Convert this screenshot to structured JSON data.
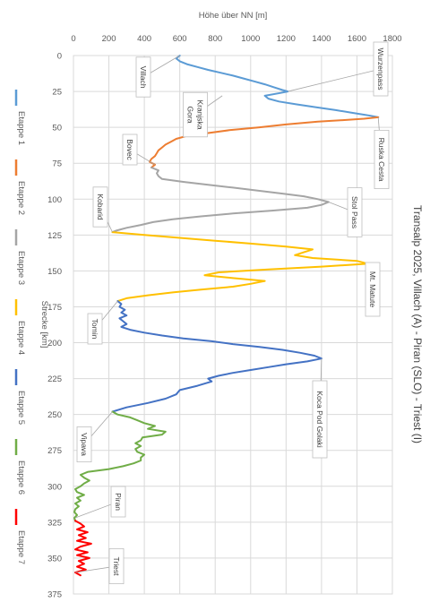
{
  "chart_data": {
    "type": "line",
    "title": "Transalp 2025, Villach (A) - Piran (SLO) - Triest (I)",
    "xlabel": "Strecke [km]",
    "ylabel": "Höhe über NN [m]",
    "xlim": [
      0,
      375
    ],
    "ylim": [
      0,
      1800
    ],
    "x_ticks": [
      0,
      25,
      50,
      75,
      100,
      125,
      150,
      175,
      200,
      225,
      250,
      275,
      300,
      325,
      350,
      375
    ],
    "y_ticks": [
      0,
      200,
      400,
      600,
      800,
      1000,
      1200,
      1400,
      1600,
      1800
    ],
    "grid": true,
    "orientation": "rotated 90 degrees clockwise",
    "legend_position": "left",
    "series": [
      {
        "name": "Etappe 1",
        "color": "#5B9BD5",
        "x": [
          0,
          2,
          4,
          6,
          8,
          10,
          12,
          14,
          16,
          18,
          20,
          22,
          24,
          25,
          26,
          28,
          30,
          32,
          34,
          36,
          38,
          40,
          42,
          43
        ],
        "y": [
          600,
          580,
          600,
          640,
          700,
          760,
          830,
          900,
          960,
          1020,
          1080,
          1130,
          1180,
          1210,
          1170,
          1080,
          1100,
          1160,
          1260,
          1370,
          1480,
          1580,
          1680,
          1720
        ]
      },
      {
        "name": "Etappe 2",
        "color": "#ED7D31",
        "x": [
          43,
          44,
          45,
          46,
          48,
          50,
          52,
          54,
          56,
          58,
          60,
          62,
          64,
          66,
          68,
          70,
          72,
          74,
          76,
          78
        ],
        "y": [
          1720,
          1640,
          1520,
          1380,
          1200,
          1050,
          880,
          760,
          640,
          580,
          550,
          520,
          500,
          480,
          470,
          460,
          440,
          430,
          460,
          440
        ]
      },
      {
        "name": "Etappe 3",
        "color": "#A5A5A5",
        "x": [
          78,
          80,
          82,
          84,
          86,
          88,
          90,
          92,
          94,
          96,
          98,
          100,
          102,
          104,
          106,
          108,
          110,
          112,
          114,
          116,
          118,
          120,
          122,
          123
        ],
        "y": [
          440,
          480,
          470,
          480,
          500,
          620,
          760,
          900,
          1040,
          1170,
          1300,
          1380,
          1440,
          1400,
          1320,
          1120,
          900,
          720,
          560,
          450,
          380,
          300,
          240,
          220
        ]
      },
      {
        "name": "Etappe 4",
        "color": "#FFC000",
        "x": [
          123,
          125,
          127,
          129,
          131,
          133,
          135,
          137,
          139,
          141,
          143,
          145,
          147,
          149,
          151,
          153,
          155,
          157,
          159,
          161,
          163,
          165,
          167,
          169,
          171
        ],
        "y": [
          220,
          400,
          600,
          800,
          1000,
          1200,
          1350,
          1300,
          1250,
          1350,
          1600,
          1660,
          1400,
          1100,
          820,
          740,
          900,
          1080,
          1000,
          900,
          720,
          560,
          420,
          300,
          250
        ]
      },
      {
        "name": "Etappe 5",
        "color": "#4472C4",
        "x": [
          171,
          173,
          175,
          177,
          179,
          181,
          183,
          185,
          187,
          189,
          191,
          193,
          195,
          197,
          199,
          201,
          203,
          205,
          207,
          209,
          211,
          213,
          215,
          217,
          219,
          221,
          223,
          225,
          227,
          230,
          233,
          236,
          239,
          242,
          245,
          248
        ],
        "y": [
          250,
          270,
          260,
          290,
          270,
          300,
          260,
          280,
          300,
          270,
          320,
          400,
          500,
          620,
          780,
          900,
          1050,
          1180,
          1280,
          1360,
          1400,
          1320,
          1200,
          1100,
          1000,
          900,
          820,
          760,
          780,
          700,
          600,
          580,
          520,
          420,
          300,
          220
        ]
      },
      {
        "name": "Etappe 6",
        "color": "#70AD47",
        "x": [
          248,
          250,
          252,
          254,
          256,
          258,
          260,
          262,
          264,
          266,
          268,
          270,
          272,
          274,
          276,
          278,
          280,
          282,
          284,
          286,
          288,
          290,
          292,
          294,
          296,
          298,
          300,
          302,
          304,
          306,
          308,
          310,
          312,
          314,
          316,
          318,
          320,
          322,
          324
        ],
        "y": [
          220,
          250,
          320,
          360,
          400,
          460,
          420,
          520,
          500,
          390,
          380,
          350,
          380,
          350,
          360,
          400,
          380,
          380,
          340,
          280,
          200,
          80,
          40,
          60,
          90,
          60,
          40,
          10,
          20,
          60,
          20,
          40,
          10,
          30,
          10,
          5,
          20,
          5,
          10
        ]
      },
      {
        "name": "Etappe 7",
        "color": "#FF0000",
        "x": [
          324,
          326,
          328,
          330,
          332,
          334,
          336,
          338,
          340,
          342,
          344,
          346,
          348,
          350,
          352,
          354,
          356,
          358,
          360,
          362
        ],
        "y": [
          10,
          40,
          60,
          20,
          80,
          30,
          70,
          20,
          100,
          40,
          10,
          80,
          20,
          90,
          30,
          60,
          20,
          70,
          10,
          40
        ]
      }
    ],
    "annotations": [
      {
        "text": "Villach",
        "x": 0,
        "y": 600
      },
      {
        "text": "Wurzenpass",
        "x": 25,
        "y": 1210
      },
      {
        "text": "Kranjska Gora",
        "x": 28,
        "y": 840
      },
      {
        "text": "Ruska Cesta",
        "x": 43,
        "y": 1720
      },
      {
        "text": "Bovec",
        "x": 76,
        "y": 460
      },
      {
        "text": "Stol Pass",
        "x": 102,
        "y": 1440
      },
      {
        "text": "Kobarid",
        "x": 123,
        "y": 220
      },
      {
        "text": "Mt. Matute",
        "x": 145,
        "y": 1660
      },
      {
        "text": "Tomin",
        "x": 171,
        "y": 250
      },
      {
        "text": "Koca Pod Golaki",
        "x": 211,
        "y": 1400
      },
      {
        "text": "Vipava",
        "x": 248,
        "y": 220
      },
      {
        "text": "Piran",
        "x": 322,
        "y": 10
      },
      {
        "text": "Triest",
        "x": 360,
        "y": 10
      }
    ]
  }
}
